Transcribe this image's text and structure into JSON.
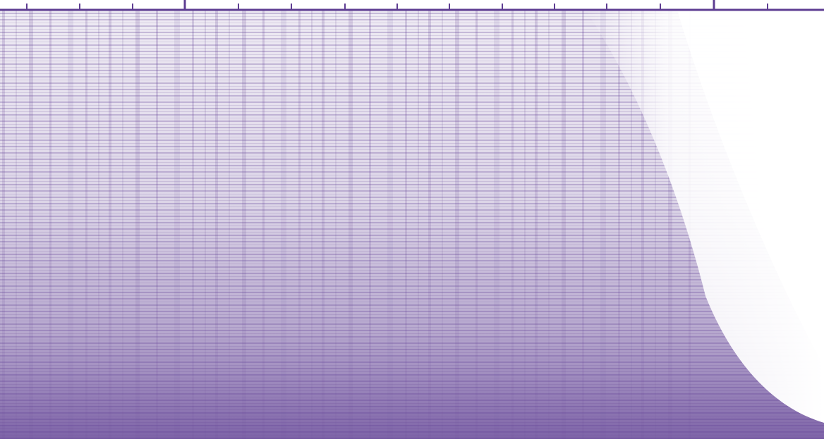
{
  "chart_data": {
    "type": "heatmap",
    "color": "#5e3d92"
  }
}
